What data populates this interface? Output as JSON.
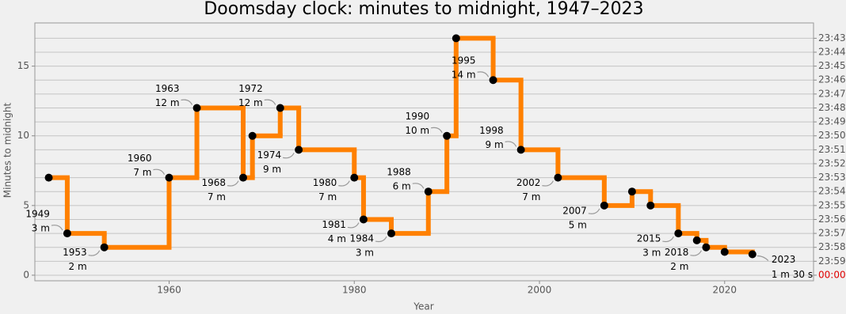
{
  "chart_data": {
    "type": "step",
    "title": "Doomsday clock: minutes to midnight, 1947–2023",
    "x_label": "Year",
    "y_label": "Minutes to midnight",
    "x": [
      1947,
      1949,
      1953,
      1960,
      1963,
      1968,
      1969,
      1972,
      1974,
      1980,
      1981,
      1984,
      1988,
      1990,
      1991,
      1995,
      1998,
      2002,
      2007,
      2010,
      2012,
      2015,
      2017,
      2018,
      2020,
      2023
    ],
    "series": [
      {
        "name": "Minutes to midnight",
        "color": "#ff8000",
        "values": [
          7,
          3,
          2,
          7,
          12,
          7,
          10,
          12,
          9,
          7,
          4,
          3,
          6,
          10,
          17,
          14,
          9,
          7,
          5,
          6,
          5,
          3,
          2.5,
          2,
          1.67,
          1.5
        ]
      }
    ],
    "annotations": [
      null,
      {
        "year": "1949",
        "text": "3 m"
      },
      {
        "year": "1953",
        "text": "2 m"
      },
      {
        "year": "1960",
        "text": "7 m"
      },
      {
        "year": "1963",
        "text": "12 m"
      },
      {
        "year": "1968",
        "text": "7 m"
      },
      null,
      {
        "year": "1972",
        "text": "12 m"
      },
      {
        "year": "1974",
        "text": "9 m"
      },
      {
        "year": "1980",
        "text": "7 m"
      },
      {
        "year": "1981",
        "text": "4 m"
      },
      {
        "year": "1984",
        "text": "3 m"
      },
      {
        "year": "1988",
        "text": "6 m"
      },
      {
        "year": "1990",
        "text": "10 m"
      },
      null,
      {
        "year": "1995",
        "text": "14 m"
      },
      {
        "year": "1998",
        "text": "9 m"
      },
      {
        "year": "2002",
        "text": "7 m"
      },
      {
        "year": "2007",
        "text": "5 m"
      },
      null,
      null,
      {
        "year": "2015",
        "text": "3 m"
      },
      null,
      {
        "year": "2018",
        "text": "2 m"
      },
      null,
      {
        "year": "2023",
        "text": "1 m 30 s"
      }
    ],
    "xlim": [
      1945.5,
      2029.6
    ],
    "xticks": [
      1960,
      1980,
      2000,
      2020
    ],
    "ylim": [
      -0.4,
      18.1
    ],
    "yticks": [
      0,
      5,
      10,
      15
    ],
    "y2lim": [
      -0.4,
      18.1
    ],
    "y2ticks": [
      {
        "value": 0,
        "label": "00:00",
        "color": "#e00000"
      },
      {
        "value": 1,
        "label": "23:59"
      },
      {
        "value": 2,
        "label": "23:58"
      },
      {
        "value": 3,
        "label": "23:57"
      },
      {
        "value": 4,
        "label": "23:56"
      },
      {
        "value": 5,
        "label": "23:55"
      },
      {
        "value": 6,
        "label": "23:54"
      },
      {
        "value": 7,
        "label": "23:53"
      },
      {
        "value": 8,
        "label": "23:52"
      },
      {
        "value": 9,
        "label": "23:51"
      },
      {
        "value": 10,
        "label": "23:50"
      },
      {
        "value": 11,
        "label": "23:49"
      },
      {
        "value": 12,
        "label": "23:48"
      },
      {
        "value": 13,
        "label": "23:47"
      },
      {
        "value": 14,
        "label": "23:46"
      },
      {
        "value": 15,
        "label": "23:45"
      },
      {
        "value": 16,
        "label": "23:44"
      },
      {
        "value": 17,
        "label": "23:43"
      }
    ],
    "grid": true,
    "point_color": "#000000"
  }
}
